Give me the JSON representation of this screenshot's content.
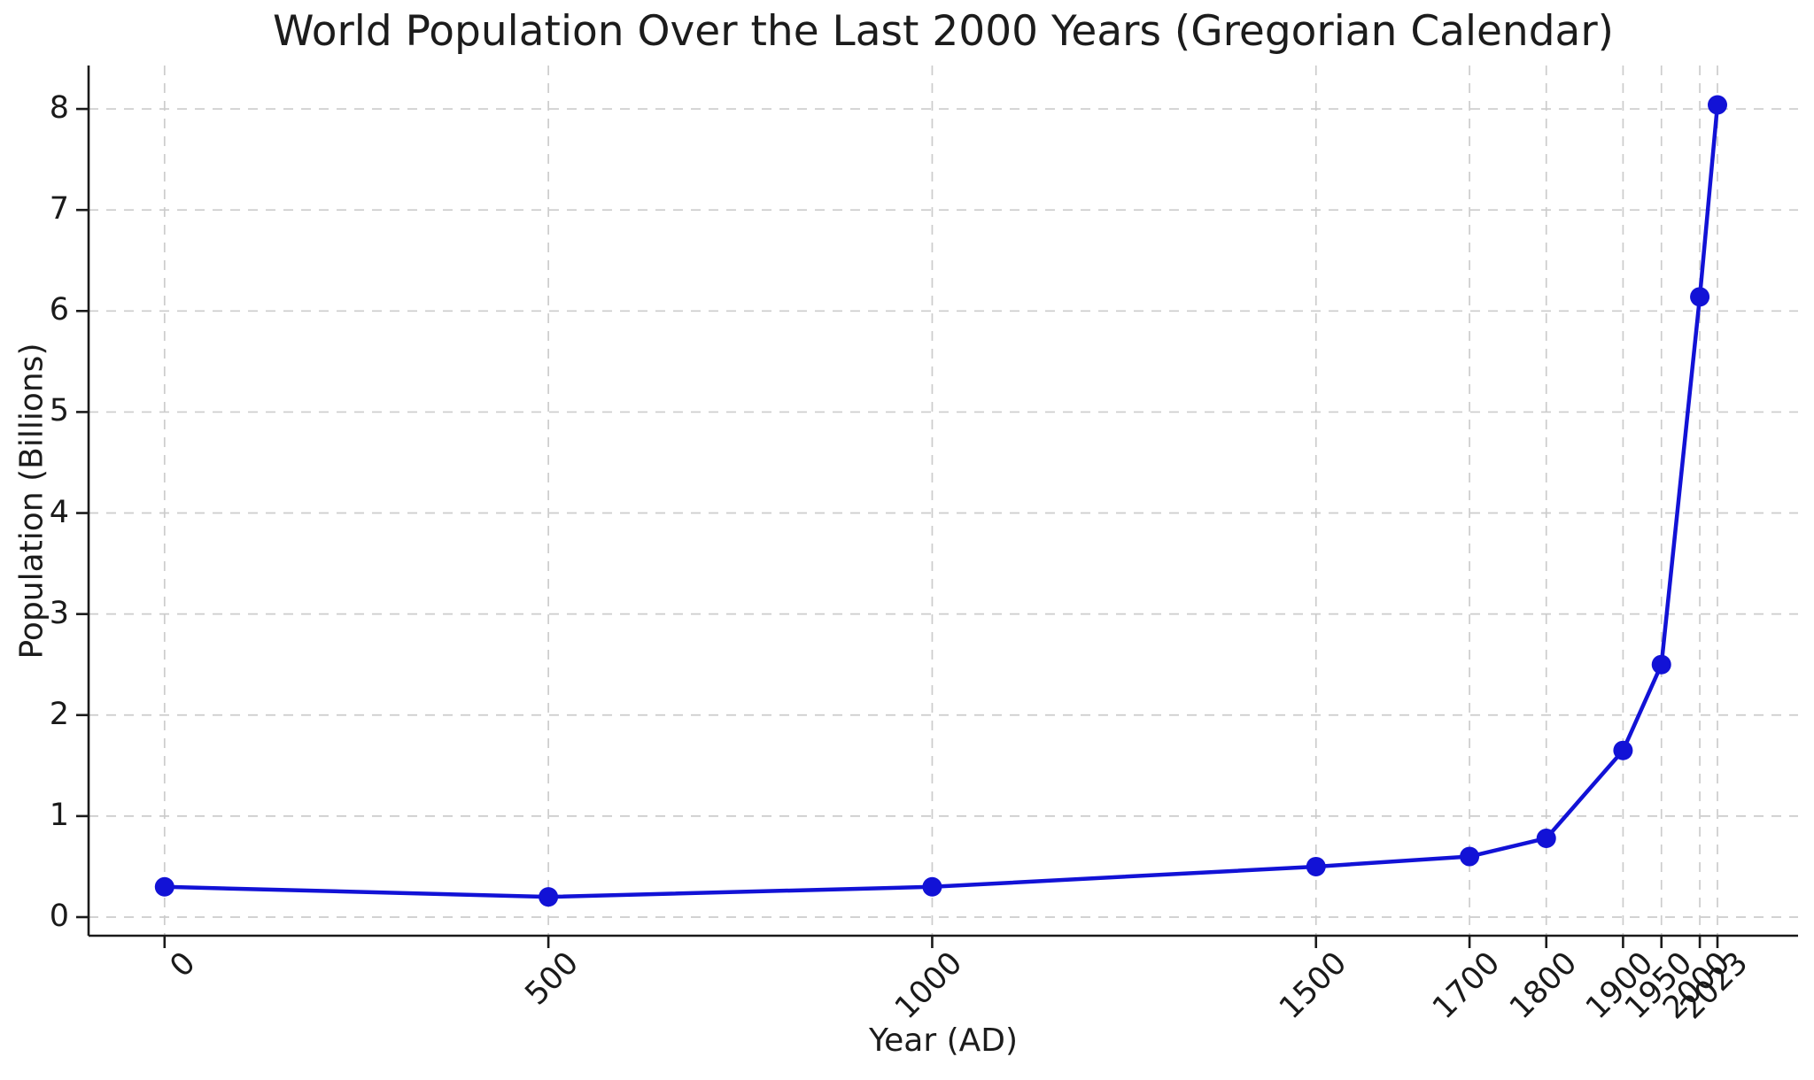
{
  "figure": {
    "background_color": "#ffffff"
  },
  "chart_data": {
    "type": "line",
    "title": "World Population Over the Last 2000 Years (Gregorian Calendar)",
    "xlabel": "Year (AD)",
    "ylabel": "Population (Billions)",
    "x": [
      0,
      500,
      1000,
      1500,
      1700,
      1800,
      1900,
      1950,
      2000,
      2023
    ],
    "values": [
      0.3,
      0.2,
      0.3,
      0.5,
      0.6,
      0.78,
      1.65,
      2.5,
      6.14,
      8.04
    ],
    "x_ticks": [
      0,
      500,
      1000,
      1500,
      1700,
      1800,
      1900,
      1950,
      2000,
      2023
    ],
    "x_tick_labels": [
      "0",
      "500",
      "1000",
      "1500",
      "1700",
      "1800",
      "1900",
      "1950",
      "2000",
      "2023"
    ],
    "x_tick_rotation_deg": 45,
    "y_ticks": [
      0,
      1,
      2,
      3,
      4,
      5,
      6,
      7,
      8
    ],
    "y_tick_labels": [
      "0",
      "1",
      "2",
      "3",
      "4",
      "5",
      "6",
      "7",
      "8"
    ],
    "xlim": [
      -99,
      2128
    ],
    "ylim": [
      -0.184,
      8.43
    ],
    "grid": true,
    "grid_line_style": "dashed",
    "legend": false,
    "marker": "circle",
    "colors": {
      "line": "#1212d6",
      "marker": "#1212d6",
      "grid": "#cccccc",
      "axis": "#1a1a1a",
      "text": "#1c1c1c",
      "background": "#ffffff"
    }
  }
}
